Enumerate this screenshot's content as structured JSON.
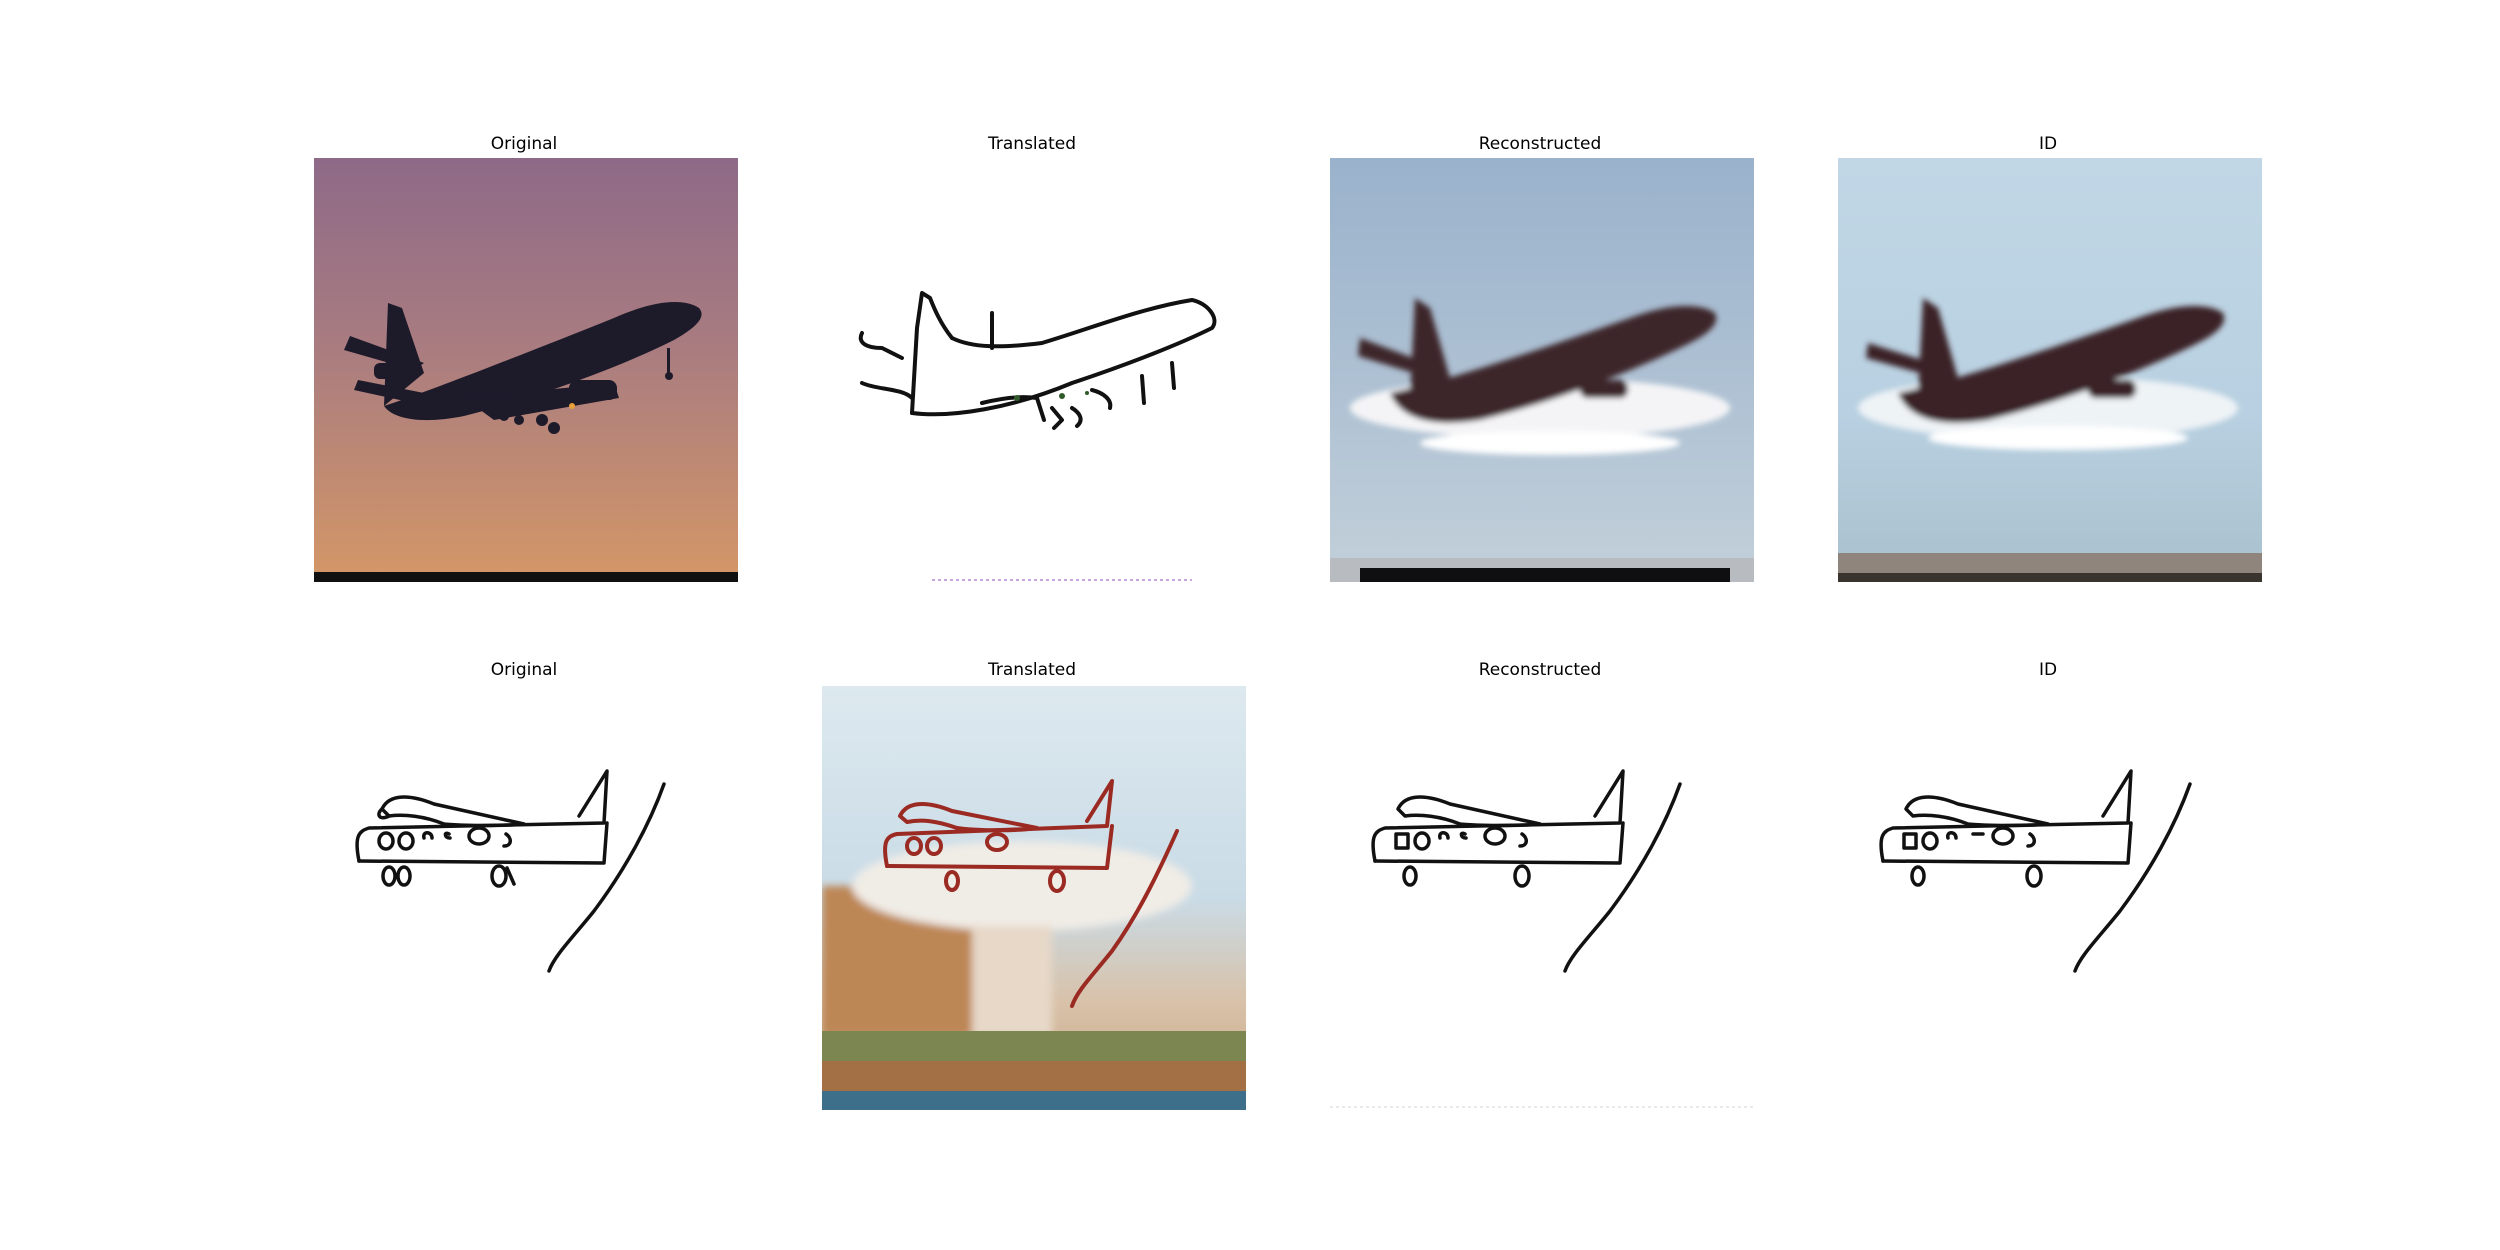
{
  "figure": {
    "rows": [
      {
        "panels": [
          {
            "title": "Original",
            "name": "row1-original",
            "content": "photo of airliner silhouette against purple-orange sky"
          },
          {
            "title": "Translated",
            "name": "row1-translated",
            "content": "line sketch of airliner"
          },
          {
            "title": "Reconstructed",
            "name": "row1-reconstructed",
            "content": "blurry reconstructed airliner photo, blue sky"
          },
          {
            "title": "ID",
            "name": "row1-id",
            "content": "blurry identity airliner photo, blue sky"
          }
        ]
      },
      {
        "panels": [
          {
            "title": "Original",
            "name": "row2-original",
            "content": "hand-drawn airplane sketch"
          },
          {
            "title": "Translated",
            "name": "row2-translated",
            "content": "photo-like rendering of airplane sketch"
          },
          {
            "title": "Reconstructed",
            "name": "row2-reconstructed",
            "content": "reconstructed airplane sketch"
          },
          {
            "title": "ID",
            "name": "row2-id",
            "content": "identity airplane sketch"
          }
        ]
      }
    ]
  },
  "colors": {
    "sky_top": "#8f6a86",
    "sky_bottom": "#cf9368",
    "silhouette": "#1d1a2a",
    "blue_sky": "#9fb4cb",
    "light_blue_sky": "#bcd6e6",
    "plane_dark": "#3a2226",
    "ground_green": "#5c6e45",
    "ground_brown": "#a36f44",
    "sketch_line": "#111111",
    "red_line": "#9a2a22"
  }
}
